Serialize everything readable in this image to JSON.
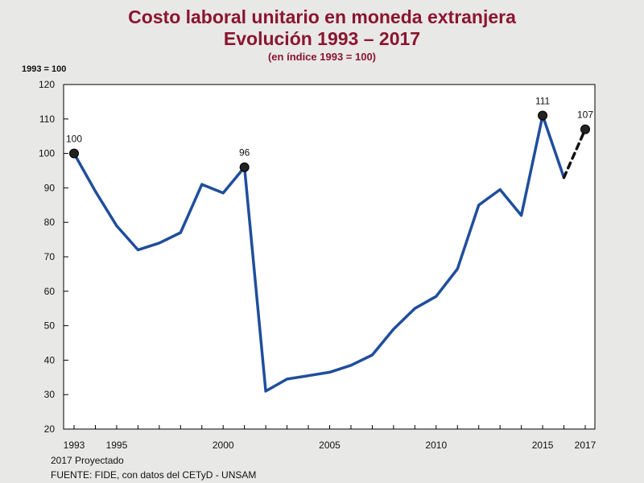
{
  "chart_data": {
    "type": "line",
    "title": "Costo laboral unitario en moneda extranjera",
    "title_line2": "Evolución  1993 – 2017",
    "subtitle": "(en índice 1993 = 100)",
    "ylabel": "1993 = 100",
    "xlabel": "",
    "ylim": [
      20,
      120
    ],
    "yticks": [
      20,
      30,
      40,
      50,
      60,
      70,
      80,
      90,
      100,
      110,
      120
    ],
    "xlim": [
      1993,
      2017
    ],
    "xticks": [
      1993,
      1995,
      2000,
      2005,
      2010,
      2015,
      2017
    ],
    "series": [
      {
        "name": "Costo laboral unitario",
        "x": [
          1993,
          1994,
          1995,
          1996,
          1997,
          1998,
          1999,
          2000,
          2001,
          2002,
          2003,
          2004,
          2005,
          2006,
          2007,
          2008,
          2009,
          2010,
          2011,
          2012,
          2013,
          2014,
          2015,
          2016
        ],
        "values": [
          100,
          89,
          79,
          72,
          74,
          77,
          91,
          88.5,
          96,
          31,
          34.5,
          35.5,
          36.5,
          38.5,
          41.5,
          49,
          55,
          58.5,
          66.5,
          85,
          89.5,
          82,
          111,
          93
        ],
        "color": "#1f4e9c",
        "style": "solid"
      },
      {
        "name": "2017 Proyectado",
        "x": [
          2016,
          2017
        ],
        "values": [
          93,
          107
        ],
        "color": "#111111",
        "style": "dashed"
      }
    ],
    "annotations": [
      {
        "x": 1993,
        "y": 100,
        "label": "100"
      },
      {
        "x": 2001,
        "y": 96,
        "label": "96"
      },
      {
        "x": 2015,
        "y": 111,
        "label": "111"
      },
      {
        "x": 2017,
        "y": 107,
        "label": "107"
      }
    ],
    "note": "2017 Proyectado",
    "source": "FUENTE: FIDE, con datos del CETyD - UNSAM"
  }
}
